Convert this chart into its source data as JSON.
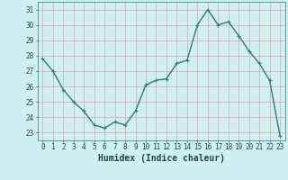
{
  "x": [
    0,
    1,
    2,
    3,
    4,
    5,
    6,
    7,
    8,
    9,
    10,
    11,
    12,
    13,
    14,
    15,
    16,
    17,
    18,
    19,
    20,
    21,
    22,
    23
  ],
  "y": [
    27.8,
    27.0,
    25.8,
    25.0,
    24.4,
    23.5,
    23.3,
    23.7,
    23.5,
    24.4,
    26.1,
    26.4,
    26.5,
    27.5,
    27.7,
    30.0,
    31.0,
    30.0,
    30.2,
    29.3,
    28.3,
    27.5,
    26.4,
    22.8
  ],
  "xlabel": "Humidex (Indice chaleur)",
  "ylim": [
    22.5,
    31.5
  ],
  "xlim": [
    -0.5,
    23.5
  ],
  "yticks": [
    23,
    24,
    25,
    26,
    27,
    28,
    29,
    30,
    31
  ],
  "xticks": [
    0,
    1,
    2,
    3,
    4,
    5,
    6,
    7,
    8,
    9,
    10,
    11,
    12,
    13,
    14,
    15,
    16,
    17,
    18,
    19,
    20,
    21,
    22,
    23
  ],
  "line_color": "#2e7d6e",
  "marker_color": "#2e7d6e",
  "bg_color": "#cef0f0",
  "grid_color": "#e8a0a0",
  "xlabel_fontsize": 7,
  "tick_fontsize": 5.5,
  "line_width": 1.0,
  "marker_size": 2.0
}
